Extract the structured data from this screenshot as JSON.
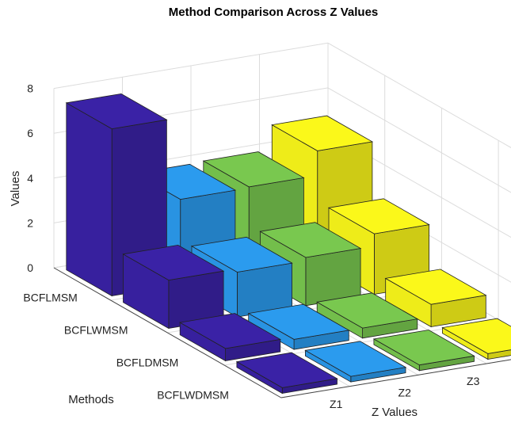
{
  "chart_data": {
    "type": "bar3d",
    "title": "Method Comparison Across Z Values",
    "xlabel": "Z Values",
    "ylabel": "Methods",
    "zlabel": "Values",
    "zlim": [
      0,
      8
    ],
    "zticks": [
      "0",
      "2",
      "4",
      "6",
      "8"
    ],
    "grid": true,
    "methods": [
      "BCFLMSM",
      "BCFLWMSM",
      "BCFLDMSM",
      "BCFLWDMSM"
    ],
    "zcats": [
      "Z1",
      "Z2",
      "Z3",
      "Z4"
    ],
    "colors": [
      "#3a22a6",
      "#2b9bee",
      "#79c84f",
      "#fbf81a"
    ],
    "values": [
      [
        7.45,
        3.8,
        3.85,
        4.95
      ],
      [
        2.15,
        2.0,
        2.15,
        2.7
      ],
      [
        0.55,
        0.45,
        0.45,
        1.0
      ],
      [
        0.25,
        0.25,
        0.25,
        0.25
      ]
    ]
  }
}
